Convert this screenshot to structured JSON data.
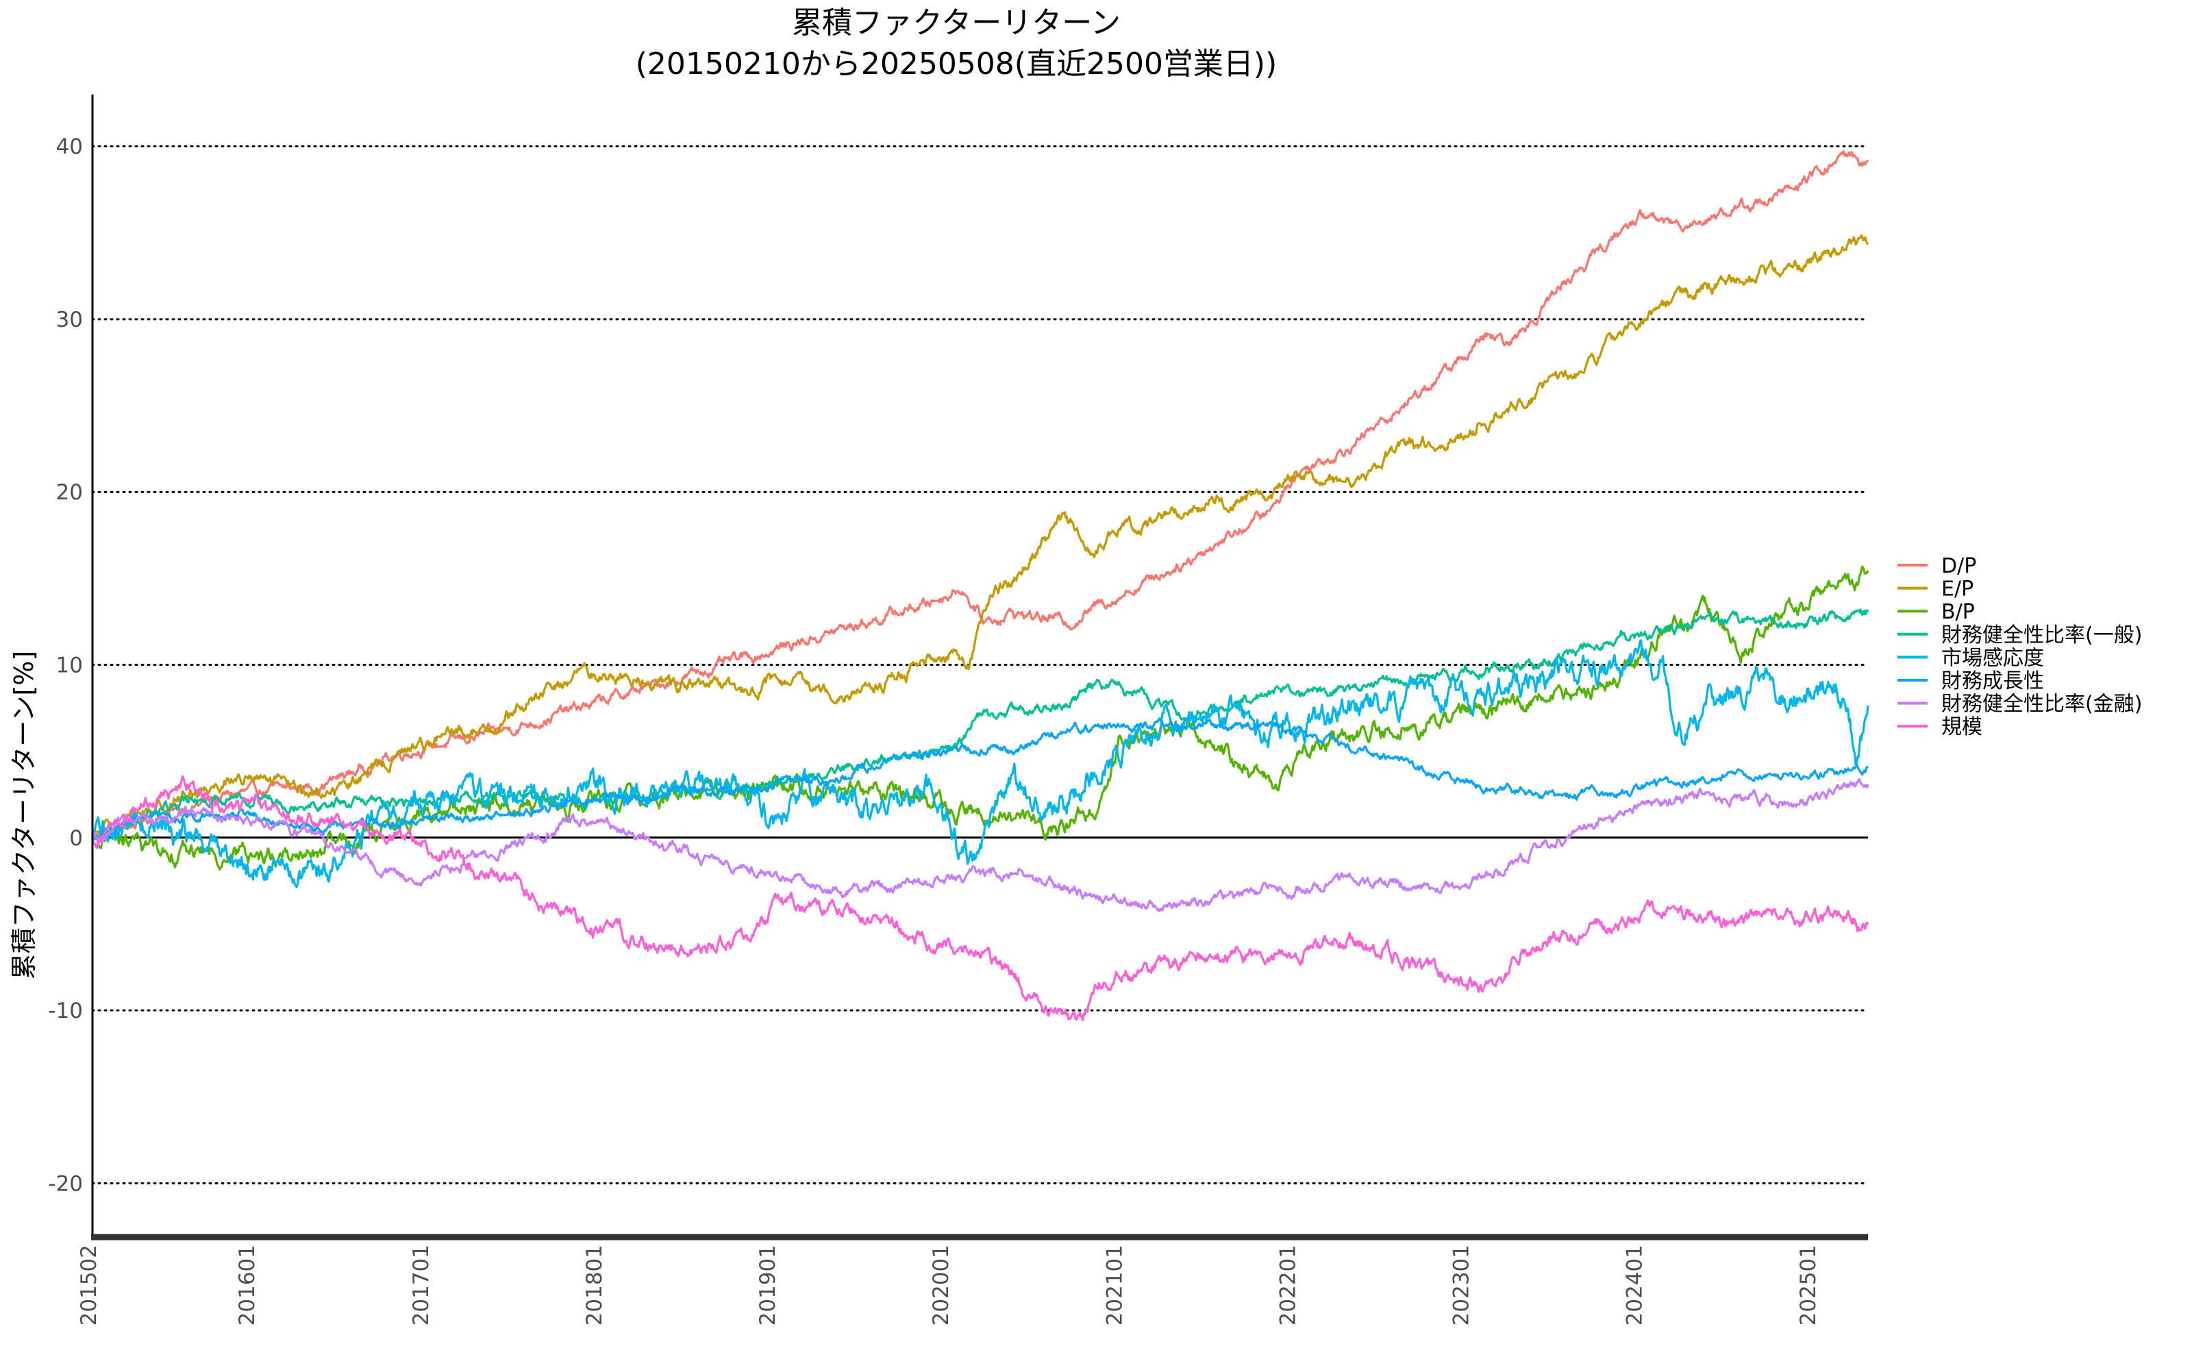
{
  "chart_data": {
    "type": "line",
    "title": "累積ファクターリターン",
    "subtitle": "(20150210から20250508(直近2500営業日))",
    "xlabel": "",
    "ylabel": "累積ファクターリターン[%]",
    "ylim": [
      -23,
      43
    ],
    "yticks": [
      -20,
      -10,
      0,
      10,
      20,
      30,
      40
    ],
    "ytick_labels": [
      "-20",
      "-10",
      "0",
      "10",
      "20",
      "30",
      "40"
    ],
    "xlim": [
      "2015-02-10",
      "2025-05-08"
    ],
    "xticks": [
      "2015-02-01",
      "2016-01-01",
      "2017-01-01",
      "2018-01-01",
      "2019-01-01",
      "2020-01-01",
      "2021-01-01",
      "2022-01-01",
      "2023-01-01",
      "2024-01-01",
      "2025-01-01"
    ],
    "xtick_labels": [
      "201502",
      "201601",
      "201701",
      "201801",
      "201901",
      "202001",
      "202101",
      "202201",
      "202301",
      "202401",
      "202501"
    ],
    "grid": "horizontal dotted",
    "zero_line": true,
    "legend_position": "right",
    "series": [
      {
        "name": "D/P",
        "color": "#F8766D",
        "noise": 0.25,
        "points": [
          [
            "2015-02-10",
            0
          ],
          [
            "2015-06-01",
            1
          ],
          [
            "2015-12-01",
            2.5
          ],
          [
            "2016-06-01",
            3
          ],
          [
            "2016-12-01",
            5
          ],
          [
            "2017-06-01",
            6
          ],
          [
            "2017-12-01",
            7.5
          ],
          [
            "2018-06-01",
            9
          ],
          [
            "2018-12-01",
            10.5
          ],
          [
            "2019-06-01",
            12
          ],
          [
            "2019-12-01",
            13.5
          ],
          [
            "2020-02-15",
            14.5
          ],
          [
            "2020-04-01",
            12.5
          ],
          [
            "2020-06-01",
            13
          ],
          [
            "2020-10-01",
            12.5
          ],
          [
            "2020-12-01",
            13.5
          ],
          [
            "2021-06-01",
            16
          ],
          [
            "2021-12-01",
            19
          ],
          [
            "2022-01-15",
            21
          ],
          [
            "2022-06-01",
            23
          ],
          [
            "2022-12-01",
            27
          ],
          [
            "2023-03-01",
            29
          ],
          [
            "2023-04-15",
            28.5
          ],
          [
            "2023-08-01",
            32
          ],
          [
            "2023-12-01",
            35
          ],
          [
            "2024-01-15",
            36
          ],
          [
            "2024-04-01",
            35.5
          ],
          [
            "2024-07-15",
            36.2
          ],
          [
            "2024-12-01",
            37.5
          ],
          [
            "2025-03-20",
            39.5
          ],
          [
            "2025-05-08",
            39
          ]
        ]
      },
      {
        "name": "E/P",
        "color": "#C49A00",
        "noise": 0.3,
        "points": [
          [
            "2015-02-10",
            0
          ],
          [
            "2015-06-01",
            1.5
          ],
          [
            "2015-12-01",
            3.5
          ],
          [
            "2016-02-15",
            3.2
          ],
          [
            "2016-06-01",
            2.5
          ],
          [
            "2016-09-01",
            3.5
          ],
          [
            "2017-01-01",
            5.5
          ],
          [
            "2017-06-01",
            6.5
          ],
          [
            "2017-12-01",
            9.5
          ],
          [
            "2018-06-01",
            9
          ],
          [
            "2018-12-01",
            8.5
          ],
          [
            "2019-01-01",
            9
          ],
          [
            "2019-06-01",
            8.5
          ],
          [
            "2019-09-01",
            8.8
          ],
          [
            "2019-12-01",
            10
          ],
          [
            "2020-02-01",
            11
          ],
          [
            "2020-03-01",
            10
          ],
          [
            "2020-04-15",
            14
          ],
          [
            "2020-06-01",
            15
          ],
          [
            "2020-08-01",
            17
          ],
          [
            "2020-09-15",
            18.5
          ],
          [
            "2020-11-15",
            16.5
          ],
          [
            "2021-02-01",
            18
          ],
          [
            "2021-06-01",
            19
          ],
          [
            "2021-12-01",
            20
          ],
          [
            "2022-01-15",
            21
          ],
          [
            "2022-05-01",
            20.5
          ],
          [
            "2022-09-01",
            22.5
          ],
          [
            "2022-12-01",
            23
          ],
          [
            "2023-06-01",
            25.5
          ],
          [
            "2023-10-01",
            27.5
          ],
          [
            "2024-01-01",
            30
          ],
          [
            "2024-06-01",
            32
          ],
          [
            "2024-12-01",
            33
          ],
          [
            "2025-05-08",
            34.5
          ]
        ]
      },
      {
        "name": "B/P",
        "color": "#53B400",
        "noise": 0.4,
        "points": [
          [
            "2015-02-10",
            0
          ],
          [
            "2015-06-01",
            -0.5
          ],
          [
            "2015-12-01",
            -1
          ],
          [
            "2016-06-01",
            -1
          ],
          [
            "2016-12-01",
            1
          ],
          [
            "2017-06-01",
            2
          ],
          [
            "2017-12-01",
            1.8
          ],
          [
            "2018-06-01",
            2.5
          ],
          [
            "2018-12-01",
            3
          ],
          [
            "2019-06-01",
            3
          ],
          [
            "2019-12-01",
            2.5
          ],
          [
            "2020-03-15",
            1
          ],
          [
            "2020-06-01",
            1.5
          ],
          [
            "2020-08-15",
            0.5
          ],
          [
            "2020-10-01",
            1
          ],
          [
            "2020-12-01",
            2
          ],
          [
            "2021-01-15",
            6
          ],
          [
            "2021-06-01",
            6.5
          ],
          [
            "2021-10-01",
            4.5
          ],
          [
            "2021-12-01",
            3
          ],
          [
            "2022-03-01",
            5.5
          ],
          [
            "2022-06-01",
            6
          ],
          [
            "2022-10-01",
            6.5
          ],
          [
            "2022-12-01",
            7
          ],
          [
            "2023-06-01",
            8
          ],
          [
            "2023-09-01",
            8.5
          ],
          [
            "2023-12-01",
            9.5
          ],
          [
            "2024-03-01",
            12
          ],
          [
            "2024-06-01",
            13
          ],
          [
            "2024-08-15",
            11
          ],
          [
            "2024-12-01",
            13
          ],
          [
            "2025-03-01",
            15
          ],
          [
            "2025-05-08",
            15
          ]
        ]
      },
      {
        "name": "財務健全性比率(一般)",
        "color": "#00C094",
        "noise": 0.25,
        "points": [
          [
            "2015-02-10",
            0
          ],
          [
            "2015-06-01",
            1.5
          ],
          [
            "2015-12-01",
            2.5
          ],
          [
            "2016-06-01",
            2
          ],
          [
            "2016-12-01",
            2
          ],
          [
            "2017-06-01",
            2.5
          ],
          [
            "2017-12-01",
            2.2
          ],
          [
            "2018-06-01",
            2.5
          ],
          [
            "2018-12-01",
            3
          ],
          [
            "2019-06-01",
            4
          ],
          [
            "2019-12-01",
            5
          ],
          [
            "2020-02-15",
            5.5
          ],
          [
            "2020-03-15",
            7
          ],
          [
            "2020-09-01",
            7.5
          ],
          [
            "2020-12-01",
            9
          ],
          [
            "2021-01-15",
            8.5
          ],
          [
            "2021-06-01",
            7
          ],
          [
            "2021-12-01",
            8.5
          ],
          [
            "2022-06-01",
            8.5
          ],
          [
            "2022-12-01",
            9.5
          ],
          [
            "2023-06-01",
            10
          ],
          [
            "2023-12-01",
            11.5
          ],
          [
            "2024-06-01",
            12.5
          ],
          [
            "2024-12-01",
            12.5
          ],
          [
            "2025-05-08",
            13
          ]
        ]
      },
      {
        "name": "市場感応度",
        "color": "#00B6EB",
        "noise": 0.6,
        "points": [
          [
            "2015-02-10",
            0
          ],
          [
            "2015-06-01",
            1
          ],
          [
            "2015-12-01",
            -1
          ],
          [
            "2016-06-01",
            -2.5
          ],
          [
            "2016-09-01",
            0
          ],
          [
            "2016-12-01",
            2
          ],
          [
            "2017-06-01",
            2.5
          ],
          [
            "2017-12-01",
            3
          ],
          [
            "2018-06-01",
            2.5
          ],
          [
            "2018-12-01",
            3
          ],
          [
            "2019-01-15",
            0.5
          ],
          [
            "2019-04-01",
            3
          ],
          [
            "2019-09-01",
            1
          ],
          [
            "2019-12-01",
            3
          ],
          [
            "2020-03-01",
            -1.5
          ],
          [
            "2020-06-01",
            3
          ],
          [
            "2020-09-01",
            1.5
          ],
          [
            "2020-12-01",
            4
          ],
          [
            "2021-03-01",
            6
          ],
          [
            "2021-06-01",
            7
          ],
          [
            "2021-09-01",
            7
          ],
          [
            "2021-12-01",
            6
          ],
          [
            "2022-06-01",
            7.5
          ],
          [
            "2022-12-01",
            8
          ],
          [
            "2023-06-01",
            9
          ],
          [
            "2023-12-01",
            9.5
          ],
          [
            "2024-03-01",
            10
          ],
          [
            "2024-04-15",
            6
          ],
          [
            "2024-07-01",
            8
          ],
          [
            "2024-10-01",
            9
          ],
          [
            "2024-12-01",
            8
          ],
          [
            "2025-03-15",
            8.5
          ],
          [
            "2025-04-15",
            4
          ],
          [
            "2025-05-08",
            7
          ]
        ]
      },
      {
        "name": "財務成長性",
        "color": "#06A4FF",
        "noise": 0.2,
        "points": [
          [
            "2015-02-10",
            0
          ],
          [
            "2015-06-01",
            1
          ],
          [
            "2015-12-01",
            1.5
          ],
          [
            "2016-06-01",
            0.5
          ],
          [
            "2016-12-01",
            1
          ],
          [
            "2017-06-01",
            1.2
          ],
          [
            "2017-12-01",
            2
          ],
          [
            "2018-06-01",
            2.5
          ],
          [
            "2018-12-01",
            3
          ],
          [
            "2019-06-01",
            3.5
          ],
          [
            "2019-12-01",
            5
          ],
          [
            "2020-06-01",
            5
          ],
          [
            "2020-09-01",
            6
          ],
          [
            "2021-01-01",
            6.5
          ],
          [
            "2021-06-01",
            6.5
          ],
          [
            "2021-12-01",
            6.5
          ],
          [
            "2022-06-01",
            5
          ],
          [
            "2022-12-01",
            3.5
          ],
          [
            "2023-06-01",
            2.5
          ],
          [
            "2023-12-01",
            2.5
          ],
          [
            "2024-06-01",
            3.5
          ],
          [
            "2024-12-01",
            3.5
          ],
          [
            "2025-05-08",
            4
          ]
        ]
      },
      {
        "name": "財務健全性比率(金融)",
        "color": "#C77CFF",
        "noise": 0.25,
        "points": [
          [
            "2015-02-10",
            0
          ],
          [
            "2015-06-01",
            1
          ],
          [
            "2015-12-01",
            1.5
          ],
          [
            "2016-06-01",
            0
          ],
          [
            "2016-12-01",
            -2.5
          ],
          [
            "2017-06-01",
            -1
          ],
          [
            "2017-12-01",
            1
          ],
          [
            "2018-06-01",
            -0.5
          ],
          [
            "2018-12-01",
            -2
          ],
          [
            "2019-06-01",
            -3
          ],
          [
            "2019-12-01",
            -2.5
          ],
          [
            "2020-06-01",
            -2
          ],
          [
            "2020-12-01",
            -3.5
          ],
          [
            "2021-06-01",
            -4
          ],
          [
            "2021-12-01",
            -3
          ],
          [
            "2022-06-01",
            -2.5
          ],
          [
            "2022-12-01",
            -3
          ],
          [
            "2023-06-01",
            -1
          ],
          [
            "2023-12-01",
            1.5
          ],
          [
            "2024-06-01",
            2.5
          ],
          [
            "2024-12-01",
            2
          ],
          [
            "2025-05-08",
            3
          ]
        ]
      },
      {
        "name": "規模",
        "color": "#FB61D7",
        "noise": 0.35,
        "points": [
          [
            "2015-02-10",
            0
          ],
          [
            "2015-06-01",
            2
          ],
          [
            "2015-09-01",
            3
          ],
          [
            "2015-12-01",
            2
          ],
          [
            "2016-06-01",
            1
          ],
          [
            "2016-12-01",
            0
          ],
          [
            "2017-06-01",
            -2
          ],
          [
            "2017-12-01",
            -5
          ],
          [
            "2018-06-01",
            -6.5
          ],
          [
            "2018-12-01",
            -5.5
          ],
          [
            "2019-01-15",
            -4
          ],
          [
            "2019-06-01",
            -4
          ],
          [
            "2019-12-01",
            -6
          ],
          [
            "2020-03-15",
            -6.5
          ],
          [
            "2020-06-01",
            -8
          ],
          [
            "2020-09-01",
            -10
          ],
          [
            "2020-10-15",
            -11
          ],
          [
            "2020-12-01",
            -8.5
          ],
          [
            "2021-06-01",
            -7
          ],
          [
            "2021-12-01",
            -6.5
          ],
          [
            "2022-06-01",
            -6
          ],
          [
            "2022-12-01",
            -8
          ],
          [
            "2023-03-01",
            -9
          ],
          [
            "2023-06-01",
            -6
          ],
          [
            "2023-12-01",
            -5
          ],
          [
            "2024-03-01",
            -4
          ],
          [
            "2024-06-01",
            -5
          ],
          [
            "2024-12-01",
            -4.5
          ],
          [
            "2025-05-08",
            -5
          ]
        ]
      }
    ]
  }
}
